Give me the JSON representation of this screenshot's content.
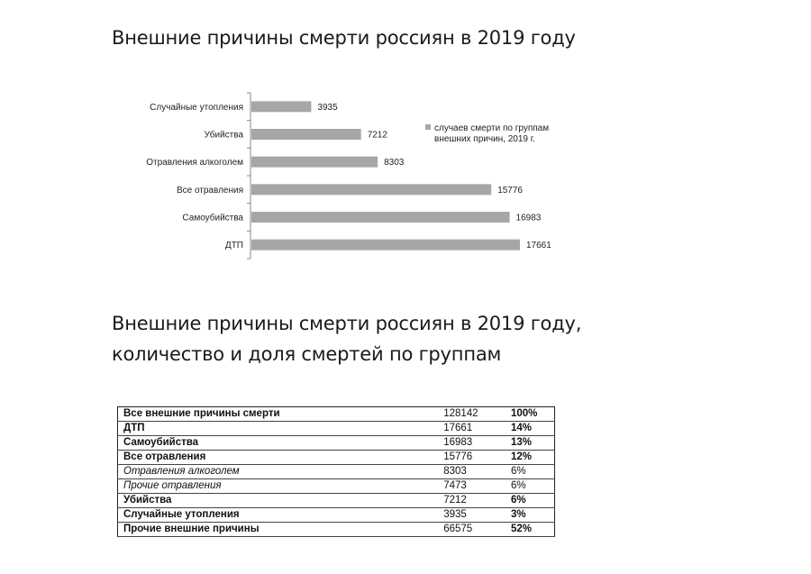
{
  "titles": {
    "chart_title": "Внешние причины смерти россиян в 2019 году",
    "table_title_line1": "Внешние причины смерти россиян в 2019 году,",
    "table_title_line2": "количество и доля смертей по группам"
  },
  "chart_data": {
    "type": "bar",
    "orientation": "horizontal",
    "categories": [
      "Случайные утопления",
      "Убийства",
      "Отравления алкоголем",
      "Все отравления",
      "Самоубийства",
      "ДТП"
    ],
    "series": [
      {
        "name": "случаев смерти по группам внешних причин, 2019 г.",
        "values": [
          3935,
          7212,
          8303,
          15776,
          16983,
          17661
        ],
        "color": "#a6a6a6"
      }
    ],
    "data_labels": [
      "3935",
      "7212",
      "8303",
      "15776",
      "16983",
      "17661"
    ],
    "legend_position": "right",
    "legend_lines": [
      "случаев смерти по группам",
      "внешних причин, 2019 г."
    ],
    "grid": false
  },
  "table": {
    "rows": [
      {
        "label": "Все внешние причины смерти",
        "value": "128142",
        "share": "100%",
        "style": "bold"
      },
      {
        "label": "ДТП",
        "value": "17661",
        "share": "14%",
        "style": "bold"
      },
      {
        "label": "Самоубийства",
        "value": "16983",
        "share": "13%",
        "style": "bold"
      },
      {
        "label": "Все отравления",
        "value": "15776",
        "share": "12%",
        "style": "bold"
      },
      {
        "label": "Отравления алкоголем",
        "value": "8303",
        "share": "6%",
        "style": "italic"
      },
      {
        "label": "Прочие отравления",
        "value": "7473",
        "share": "6%",
        "style": "italic"
      },
      {
        "label": "Убийства",
        "value": "7212",
        "share": "6%",
        "style": "bold"
      },
      {
        "label": "Случайные утопления",
        "value": "3935",
        "share": "3%",
        "style": "bold"
      },
      {
        "label": "Прочие внешние причины",
        "value": "66575",
        "share": "52%",
        "style": "bold"
      }
    ]
  }
}
